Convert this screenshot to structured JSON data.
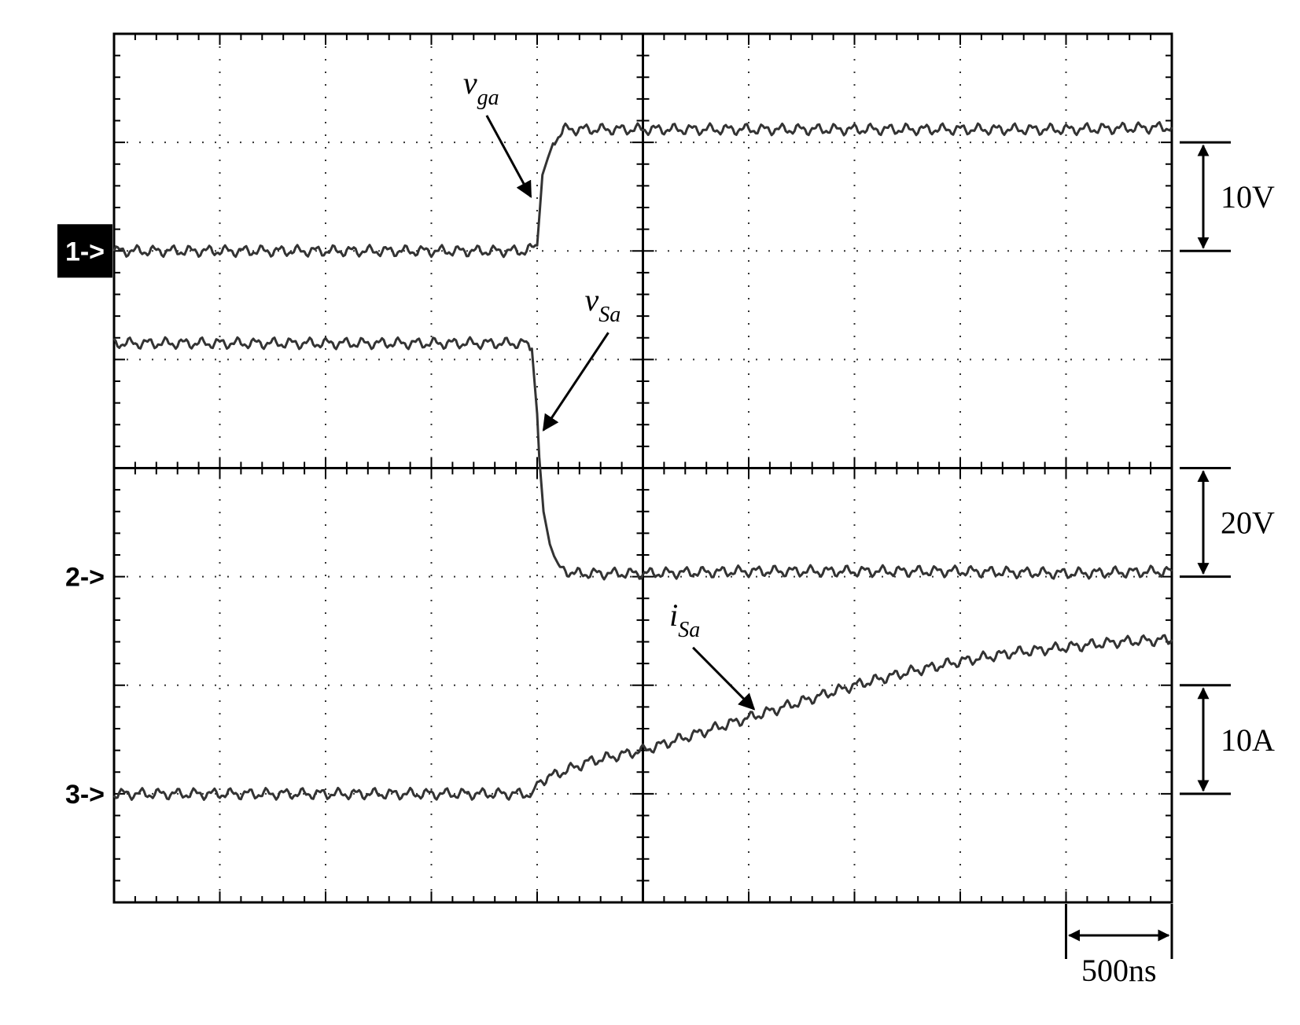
{
  "chart_data": {
    "type": "line",
    "grid": true,
    "divisions": {
      "x": 10,
      "y": 8
    },
    "x_range_div": [
      0,
      10
    ],
    "y_range_div": [
      0,
      8
    ],
    "channel_markers": [
      {
        "label": "1->",
        "ref_div": 6.0,
        "highlight": true
      },
      {
        "label": "2->",
        "ref_div": 3.0,
        "highlight": false
      },
      {
        "label": "3->",
        "ref_div": 1.0,
        "highlight": false
      }
    ],
    "scale_bars": [
      {
        "label": "10V",
        "from_div": 6.0,
        "to_div": 7.0
      },
      {
        "label": "20V",
        "from_div": 3.0,
        "to_div": 4.0
      },
      {
        "label": "10A",
        "from_div": 1.0,
        "to_div": 2.0
      }
    ],
    "time_scale": {
      "label": "500ns",
      "from_div": 9.0,
      "to_div": 10.0
    },
    "series": [
      {
        "name": "v_ga",
        "label_main": "v",
        "label_sub": "ga",
        "x": [
          0,
          1,
          2,
          3,
          3.9,
          4.0,
          4.05,
          4.15,
          4.25,
          4.5,
          5,
          6,
          7,
          8,
          9,
          10
        ],
        "y": [
          6.0,
          6.0,
          6.0,
          6.0,
          6.0,
          6.05,
          6.7,
          7.0,
          7.12,
          7.12,
          7.12,
          7.12,
          7.12,
          7.12,
          7.12,
          7.14
        ],
        "annotation": {
          "text_at": [
            3.3,
            7.45
          ],
          "arrow_to": [
            3.94,
            6.5
          ]
        }
      },
      {
        "name": "v_Sa",
        "label_main": "v",
        "label_sub": "Sa",
        "x": [
          0,
          1,
          2,
          3,
          3.88,
          3.95,
          4.0,
          4.02,
          4.06,
          4.12,
          4.2,
          4.35,
          5,
          6,
          7,
          8,
          9,
          10
        ],
        "y": [
          5.15,
          5.15,
          5.15,
          5.15,
          5.15,
          5.1,
          4.5,
          4.1,
          3.6,
          3.3,
          3.08,
          3.03,
          3.03,
          3.05,
          3.05,
          3.05,
          3.03,
          3.05
        ],
        "annotation": {
          "text_at": [
            4.45,
            5.45
          ],
          "arrow_to": [
            4.06,
            4.35
          ]
        }
      },
      {
        "name": "i_Sa",
        "label_main": "i",
        "label_sub": "Sa",
        "x": [
          0,
          1,
          2,
          3,
          3.95,
          4.0,
          4.1,
          4.5,
          5.0,
          5.5,
          6.0,
          6.5,
          7.0,
          7.5,
          8.0,
          8.5,
          9.0,
          9.5,
          10.0
        ],
        "y": [
          1.0,
          1.0,
          1.0,
          1.0,
          1.0,
          1.1,
          1.15,
          1.3,
          1.4,
          1.55,
          1.7,
          1.85,
          2.0,
          2.12,
          2.22,
          2.3,
          2.35,
          2.4,
          2.42
        ],
        "annotation": {
          "text_at": [
            5.25,
            2.55
          ],
          "arrow_to": [
            6.05,
            1.78
          ]
        }
      }
    ]
  }
}
